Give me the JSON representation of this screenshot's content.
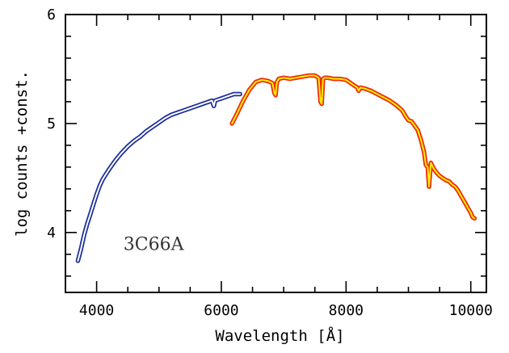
{
  "chart_data": {
    "type": "line",
    "xlabel": "Wavelength [Å]",
    "ylabel": "log counts +const.",
    "xlim": [
      3500,
      10250
    ],
    "ylim": [
      3.45,
      6
    ],
    "xticks_major": [
      4000,
      6000,
      8000,
      10000
    ],
    "xticks_minor_step": 500,
    "yticks_major": [
      4,
      5,
      6
    ],
    "yticks_minor_step": 0.2,
    "annotation": "3C66A",
    "series": [
      {
        "style": "blue-outline",
        "stroke": "#1c2f9a",
        "fill": "#ffffff",
        "x": [
          3700,
          3750,
          3800,
          3850,
          3900,
          3950,
          4000,
          4050,
          4100,
          4200,
          4300,
          4400,
          4500,
          4600,
          4700,
          4800,
          4900,
          5000,
          5100,
          5200,
          5300,
          5400,
          5500,
          5600,
          5700,
          5800,
          5850,
          5880,
          5900,
          5950,
          6000,
          6100,
          6200,
          6300
        ],
        "y": [
          3.74,
          3.85,
          3.98,
          4.08,
          4.17,
          4.26,
          4.35,
          4.43,
          4.49,
          4.58,
          4.66,
          4.73,
          4.79,
          4.84,
          4.88,
          4.93,
          4.97,
          5.01,
          5.05,
          5.08,
          5.1,
          5.12,
          5.14,
          5.16,
          5.18,
          5.2,
          5.21,
          5.16,
          5.21,
          5.22,
          5.23,
          5.25,
          5.27,
          5.27
        ]
      },
      {
        "style": "red-outline-yellow",
        "stroke": "#ee2a0a",
        "fill": "#ffee00",
        "x": [
          6170,
          6250,
          6350,
          6450,
          6550,
          6650,
          6750,
          6820,
          6850,
          6870,
          6890,
          6920,
          7000,
          7100,
          7200,
          7300,
          7400,
          7500,
          7560,
          7590,
          7610,
          7630,
          7660,
          7700,
          7800,
          7900,
          8000,
          8100,
          8180,
          8200,
          8230,
          8300,
          8400,
          8500,
          8600,
          8700,
          8800,
          8900,
          8950,
          9000,
          9050,
          9100,
          9150,
          9200,
          9250,
          9280,
          9310,
          9330,
          9360,
          9400,
          9450,
          9500,
          9550,
          9600,
          9650,
          9700,
          9750,
          9800,
          9850,
          9900,
          9950,
          10000,
          10030,
          10060
        ],
        "y": [
          5.0,
          5.09,
          5.21,
          5.31,
          5.38,
          5.4,
          5.39,
          5.37,
          5.28,
          5.26,
          5.38,
          5.41,
          5.42,
          5.41,
          5.42,
          5.43,
          5.44,
          5.44,
          5.42,
          5.2,
          5.18,
          5.41,
          5.42,
          5.42,
          5.41,
          5.41,
          5.4,
          5.36,
          5.33,
          5.3,
          5.33,
          5.32,
          5.3,
          5.27,
          5.24,
          5.21,
          5.17,
          5.12,
          5.07,
          5.03,
          5.02,
          4.98,
          4.94,
          4.85,
          4.74,
          4.62,
          4.6,
          4.42,
          4.64,
          4.59,
          4.55,
          4.52,
          4.5,
          4.48,
          4.47,
          4.44,
          4.42,
          4.38,
          4.33,
          4.28,
          4.23,
          4.18,
          4.14,
          4.13
        ]
      }
    ]
  }
}
